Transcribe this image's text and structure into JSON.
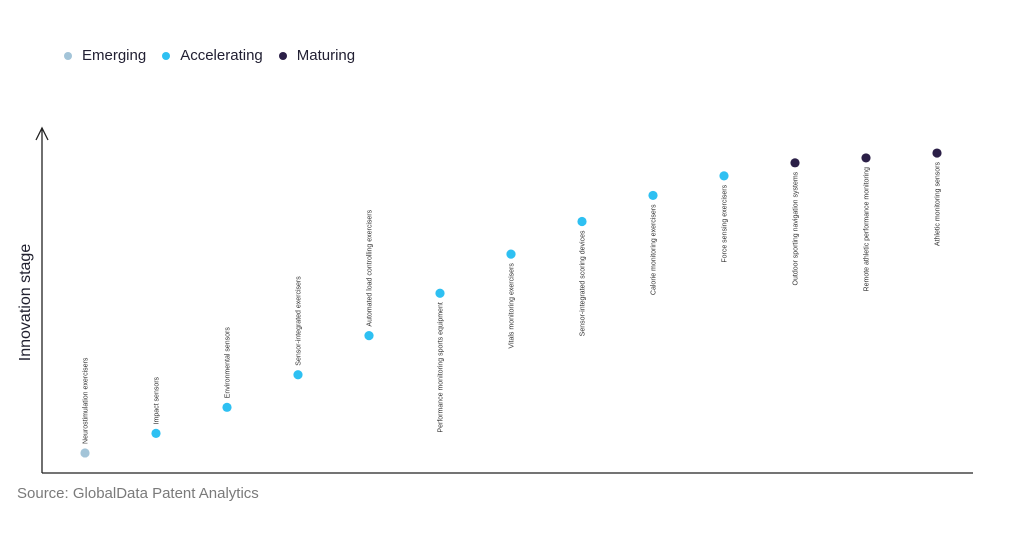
{
  "chart_data": {
    "type": "scatter",
    "title": "",
    "xlabel": "",
    "ylabel": "Innovation stage",
    "legend_position": "top-left",
    "grid": false,
    "ylim": [
      0,
      100
    ],
    "series": [
      {
        "name": "Emerging",
        "color": "#a3c4d8"
      },
      {
        "name": "Accelerating",
        "color": "#2ec0f2"
      },
      {
        "name": "Maturing",
        "color": "#2b1f47"
      }
    ],
    "points": [
      {
        "label": "Neurostimulation exercisers",
        "stage": "Emerging",
        "y": 4,
        "label_position": "above"
      },
      {
        "label": "Impact sensors",
        "stage": "Accelerating",
        "y": 10,
        "label_position": "above"
      },
      {
        "label": "Environmental sensors",
        "stage": "Accelerating",
        "y": 18,
        "label_position": "above"
      },
      {
        "label": "Sensor-integrated exercisers",
        "stage": "Accelerating",
        "y": 28,
        "label_position": "above"
      },
      {
        "label": "Automated load controlling exercisers",
        "stage": "Accelerating",
        "y": 40,
        "label_position": "above"
      },
      {
        "label": "Performance monitoring sports equipment",
        "stage": "Accelerating",
        "y": 53,
        "label_position": "below"
      },
      {
        "label": "Vitals monitoring exercisers",
        "stage": "Accelerating",
        "y": 65,
        "label_position": "below"
      },
      {
        "label": "Sensor-integrated scoring devices",
        "stage": "Accelerating",
        "y": 75,
        "label_position": "below"
      },
      {
        "label": "Calorie monitoring exercisers",
        "stage": "Accelerating",
        "y": 83,
        "label_position": "below"
      },
      {
        "label": "Force sensing exercisers",
        "stage": "Accelerating",
        "y": 89,
        "label_position": "below"
      },
      {
        "label": "Outdoor sporting navigation systems",
        "stage": "Maturing",
        "y": 93,
        "label_position": "below"
      },
      {
        "label": "Remote athletic performance monitoring",
        "stage": "Maturing",
        "y": 94.5,
        "label_position": "below"
      },
      {
        "label": "Athletic monitoring sensors",
        "stage": "Maturing",
        "y": 96,
        "label_position": "below"
      }
    ]
  },
  "source": "Source: GlobalData Patent Analytics"
}
